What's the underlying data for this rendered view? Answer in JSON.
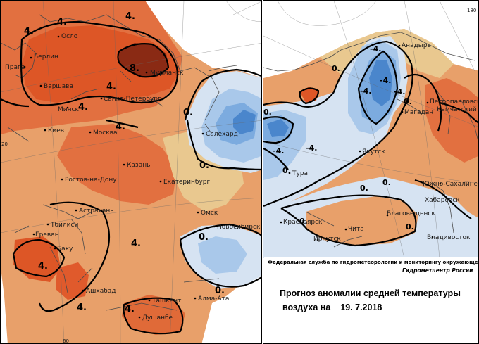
{
  "colors": {
    "anomaly_gt_8": "#8a2a14",
    "anomaly_4_8": "#dd5626",
    "anomaly_2_4": "#e27040",
    "anomaly_0_2": "#e8a06a",
    "anomaly_near0_pos": "#e9c88f",
    "anomaly_near0_neg": "#d6e3f2",
    "anomaly_neg_2": "#a9c8ea",
    "anomaly_neg_4": "#7cabdf",
    "anomaly_lt_neg4": "#4a86cc"
  },
  "west_map": {
    "cities": [
      {
        "name": "Осло"
      },
      {
        "name": "Берлин"
      },
      {
        "name": "Прага"
      },
      {
        "name": "Варшава"
      },
      {
        "name": "Мурманск"
      },
      {
        "name": "Санкт-Петербург"
      },
      {
        "name": "Минск"
      },
      {
        "name": "Киев"
      },
      {
        "name": "Москва"
      },
      {
        "name": "Казань"
      },
      {
        "name": "Ростов-на-Дону"
      },
      {
        "name": "Екатеринбург"
      },
      {
        "name": "Салехард"
      },
      {
        "name": "Астрахань"
      },
      {
        "name": "Тбилиси"
      },
      {
        "name": "Ереван"
      },
      {
        "name": "Баку"
      },
      {
        "name": "Ашхабад"
      },
      {
        "name": "Ташкент"
      },
      {
        "name": "Душанбе"
      },
      {
        "name": "Алма-Ата"
      },
      {
        "name": "Омск"
      },
      {
        "name": "Новосибирск"
      }
    ],
    "isolines": [
      "4.",
      "4.",
      "4.",
      "8.",
      "4.",
      "4.",
      "4.",
      "0.",
      "0.",
      "0.",
      "4.",
      "4.",
      "4.",
      "4.",
      "0."
    ],
    "grid_labels": [
      "20",
      "60"
    ]
  },
  "east_map": {
    "cities": [
      {
        "name": "Анадырь"
      },
      {
        "name": "Петропавловск-"
      },
      {
        "name": "Камчатский"
      },
      {
        "name": "Магадан"
      },
      {
        "name": "Якутск"
      },
      {
        "name": "Тура"
      },
      {
        "name": "Южно-Сахалинск"
      },
      {
        "name": "Хабаровск"
      },
      {
        "name": "Благовещенск"
      },
      {
        "name": "Красноярск"
      },
      {
        "name": "Чита"
      },
      {
        "name": "Владивосток"
      },
      {
        "name": "Иркутск"
      }
    ],
    "isolines": [
      "-4.",
      "-4.",
      "-4.",
      "-4.",
      "-4.",
      "0.",
      "0.",
      "0.",
      "0.",
      "0.",
      "0.",
      "0.",
      "0.",
      "-4."
    ],
    "grid_labels": [
      "180"
    ]
  },
  "info": {
    "agency": "Федеральная служба по гидрометеорологии и мониторингу окружающей среды",
    "center": "Гидрометцентр России",
    "title_line1": "Прогноз аномалии средней температуры",
    "title_line2": "воздуха на",
    "date": "19. 7.2018"
  }
}
